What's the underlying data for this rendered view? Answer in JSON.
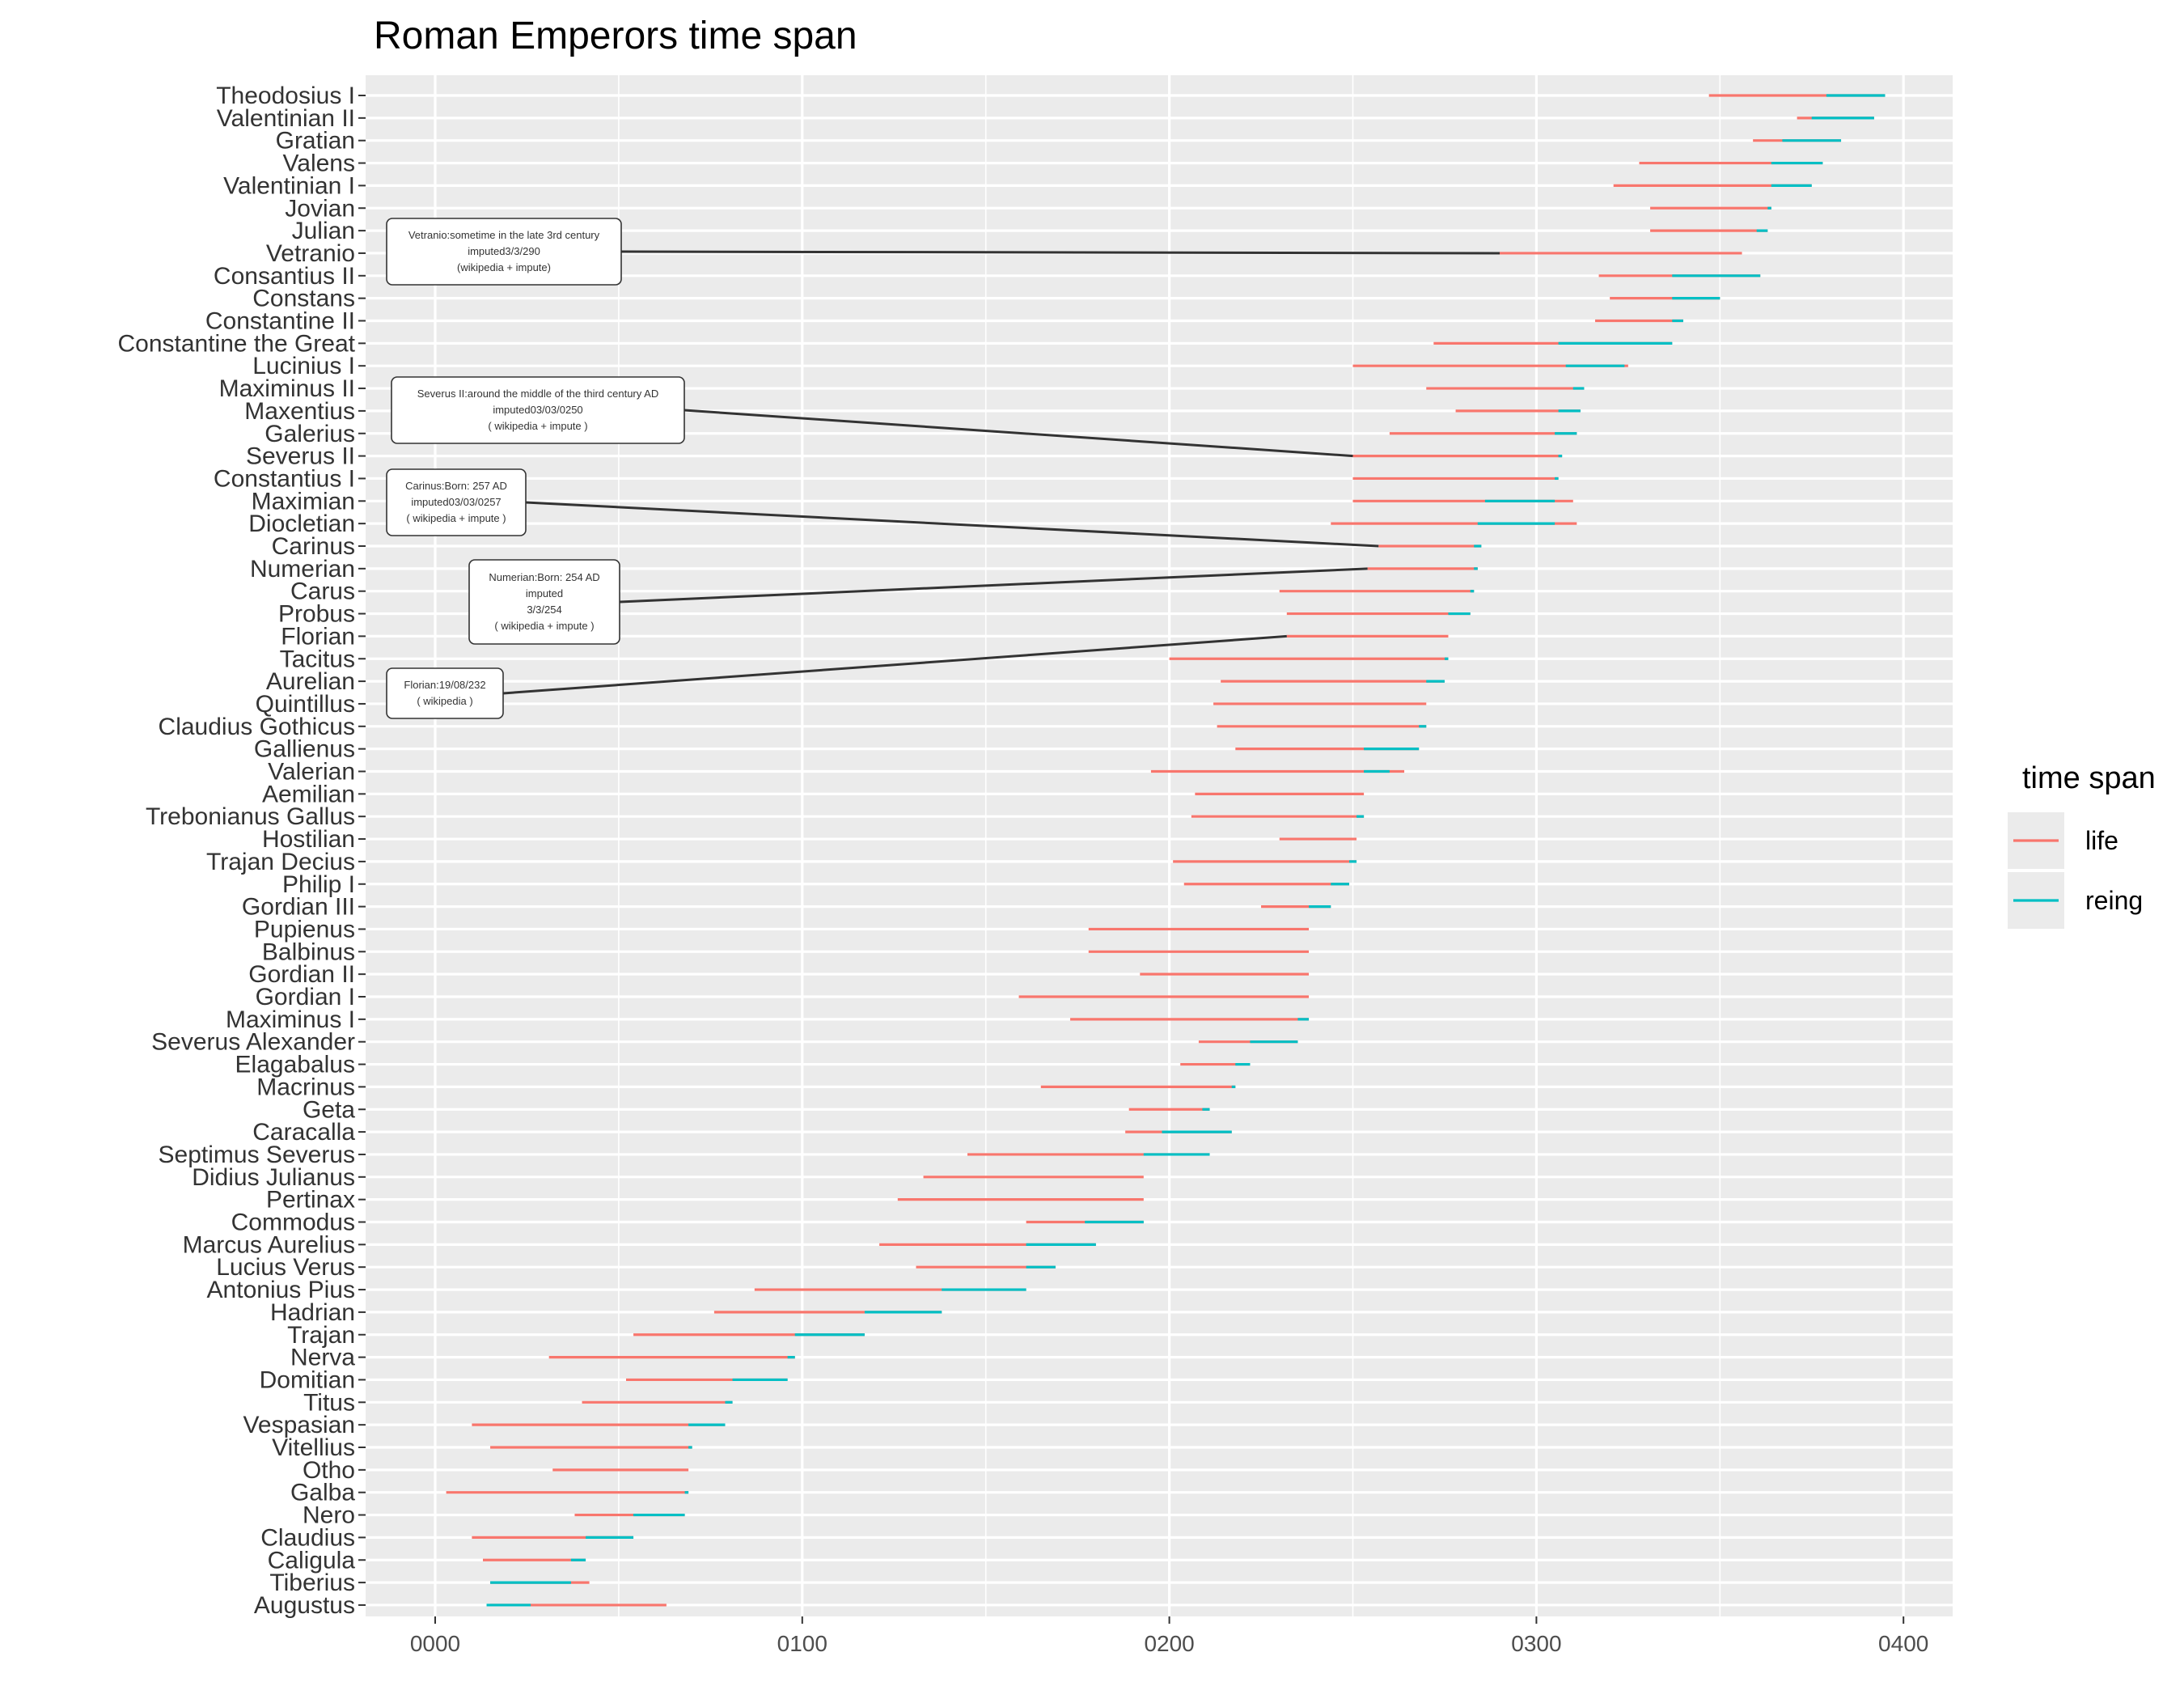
{
  "title": "Roman Emperors time span",
  "colors": {
    "life": "#F8766D",
    "reign": "#00BFC4",
    "panel": "#EBEBEB",
    "grid_major": "#FFFFFF",
    "annotation_line": "#333333"
  },
  "legend": {
    "title": "time span",
    "items": [
      {
        "key": "life",
        "label": "life"
      },
      {
        "key": "reign",
        "label": "reing"
      }
    ]
  },
  "chart_data": {
    "type": "segment",
    "title": "Roman Emperors time span",
    "xlabel": "",
    "ylabel": "",
    "xlim": [
      -15,
      415
    ],
    "x_ticks": [
      0,
      100,
      200,
      300,
      400
    ],
    "x_tick_labels": [
      "0000",
      "0100",
      "0200",
      "0300",
      "0400"
    ],
    "grid": true,
    "legend_position": "right",
    "emperors": [
      {
        "name": "Augustus",
        "life": [
          15,
          63
        ],
        "reign": [
          14,
          26
        ]
      },
      {
        "name": "Tiberius",
        "life": [
          15,
          42
        ],
        "reign": [
          15,
          37
        ]
      },
      {
        "name": "Caligula",
        "life": [
          13,
          41
        ],
        "reign": [
          37,
          41
        ]
      },
      {
        "name": "Claudius",
        "life": [
          10,
          54
        ],
        "reign": [
          41,
          54
        ]
      },
      {
        "name": "Nero",
        "life": [
          38,
          68
        ],
        "reign": [
          54,
          68
        ]
      },
      {
        "name": "Galba",
        "life": [
          3,
          69
        ],
        "reign": [
          68,
          69
        ]
      },
      {
        "name": "Otho",
        "life": [
          32,
          69
        ],
        "reign": [
          69,
          69
        ]
      },
      {
        "name": "Vitellius",
        "life": [
          15,
          70
        ],
        "reign": [
          69,
          70
        ]
      },
      {
        "name": "Vespasian",
        "life": [
          10,
          79
        ],
        "reign": [
          69,
          79
        ]
      },
      {
        "name": "Titus",
        "life": [
          40,
          81
        ],
        "reign": [
          79,
          81
        ]
      },
      {
        "name": "Domitian",
        "life": [
          52,
          96
        ],
        "reign": [
          81,
          96
        ]
      },
      {
        "name": "Nerva",
        "life": [
          31,
          98
        ],
        "reign": [
          96,
          98
        ]
      },
      {
        "name": "Trajan",
        "life": [
          54,
          117
        ],
        "reign": [
          98,
          117
        ]
      },
      {
        "name": "Hadrian",
        "life": [
          76,
          138
        ],
        "reign": [
          117,
          138
        ]
      },
      {
        "name": "Antonius Pius",
        "life": [
          87,
          161
        ],
        "reign": [
          138,
          161
        ]
      },
      {
        "name": "Lucius Verus",
        "life": [
          131,
          169
        ],
        "reign": [
          161,
          169
        ]
      },
      {
        "name": "Marcus Aurelius",
        "life": [
          121,
          180
        ],
        "reign": [
          161,
          180
        ]
      },
      {
        "name": "Commodus",
        "life": [
          161,
          193
        ],
        "reign": [
          177,
          193
        ]
      },
      {
        "name": "Pertinax",
        "life": [
          126,
          193
        ],
        "reign": [
          193,
          193
        ]
      },
      {
        "name": "Didius Julianus",
        "life": [
          133,
          193
        ],
        "reign": [
          193,
          193
        ]
      },
      {
        "name": "Septimus Severus",
        "life": [
          145,
          211
        ],
        "reign": [
          193,
          211
        ]
      },
      {
        "name": "Caracalla",
        "life": [
          188,
          217
        ],
        "reign": [
          198,
          217
        ]
      },
      {
        "name": "Geta",
        "life": [
          189,
          211
        ],
        "reign": [
          209,
          211
        ]
      },
      {
        "name": "Macrinus",
        "life": [
          165,
          218
        ],
        "reign": [
          217,
          218
        ]
      },
      {
        "name": "Elagabalus",
        "life": [
          203,
          222
        ],
        "reign": [
          218,
          222
        ]
      },
      {
        "name": "Severus Alexander",
        "life": [
          208,
          235
        ],
        "reign": [
          222,
          235
        ]
      },
      {
        "name": "Maximinus I",
        "life": [
          173,
          238
        ],
        "reign": [
          235,
          238
        ]
      },
      {
        "name": "Gordian I",
        "life": [
          159,
          238
        ],
        "reign": [
          238,
          238
        ]
      },
      {
        "name": "Gordian II",
        "life": [
          192,
          238
        ],
        "reign": [
          238,
          238
        ]
      },
      {
        "name": "Balbinus",
        "life": [
          178,
          238
        ],
        "reign": [
          238,
          238
        ]
      },
      {
        "name": "Pupienus",
        "life": [
          178,
          238
        ],
        "reign": [
          238,
          238
        ]
      },
      {
        "name": "Gordian III",
        "life": [
          225,
          244
        ],
        "reign": [
          238,
          244
        ]
      },
      {
        "name": "Philip I",
        "life": [
          204,
          249
        ],
        "reign": [
          244,
          249
        ]
      },
      {
        "name": "Trajan Decius",
        "life": [
          201,
          251
        ],
        "reign": [
          249,
          251
        ]
      },
      {
        "name": "Hostilian",
        "life": [
          230,
          251
        ],
        "reign": [
          251,
          251
        ]
      },
      {
        "name": "Trebonianus Gallus",
        "life": [
          206,
          253
        ],
        "reign": [
          251,
          253
        ]
      },
      {
        "name": "Aemilian",
        "life": [
          207,
          253
        ],
        "reign": [
          253,
          253
        ]
      },
      {
        "name": "Valerian",
        "life": [
          195,
          264
        ],
        "reign": [
          253,
          260
        ]
      },
      {
        "name": "Gallienus",
        "life": [
          218,
          268
        ],
        "reign": [
          253,
          268
        ]
      },
      {
        "name": "Claudius Gothicus",
        "life": [
          213,
          270
        ],
        "reign": [
          268,
          270
        ]
      },
      {
        "name": "Quintillus",
        "life": [
          212,
          270
        ],
        "reign": [
          270,
          270
        ]
      },
      {
        "name": "Aurelian",
        "life": [
          214,
          275
        ],
        "reign": [
          270,
          275
        ]
      },
      {
        "name": "Tacitus",
        "life": [
          200,
          276
        ],
        "reign": [
          275,
          276
        ]
      },
      {
        "name": "Florian",
        "life": [
          232,
          276
        ],
        "reign": [
          276,
          276
        ]
      },
      {
        "name": "Probus",
        "life": [
          232,
          282
        ],
        "reign": [
          276,
          282
        ]
      },
      {
        "name": "Carus",
        "life": [
          230,
          283
        ],
        "reign": [
          282,
          283
        ]
      },
      {
        "name": "Numerian",
        "life": [
          254,
          284
        ],
        "reign": [
          283,
          284
        ]
      },
      {
        "name": "Carinus",
        "life": [
          257,
          285
        ],
        "reign": [
          283,
          285
        ]
      },
      {
        "name": "Diocletian",
        "life": [
          244,
          311
        ],
        "reign": [
          284,
          305
        ]
      },
      {
        "name": "Maximian",
        "life": [
          250,
          310
        ],
        "reign": [
          286,
          305
        ]
      },
      {
        "name": "Constantius I",
        "life": [
          250,
          306
        ],
        "reign": [
          305,
          306
        ]
      },
      {
        "name": "Severus II",
        "life": [
          250,
          307
        ],
        "reign": [
          306,
          307
        ]
      },
      {
        "name": "Galerius",
        "life": [
          260,
          311
        ],
        "reign": [
          305,
          311
        ]
      },
      {
        "name": "Maxentius",
        "life": [
          278,
          312
        ],
        "reign": [
          306,
          312
        ]
      },
      {
        "name": "Maximinus II",
        "life": [
          270,
          313
        ],
        "reign": [
          310,
          313
        ]
      },
      {
        "name": "Lucinius I",
        "life": [
          250,
          325
        ],
        "reign": [
          308,
          324
        ]
      },
      {
        "name": "Constantine the Great",
        "life": [
          272,
          337
        ],
        "reign": [
          306,
          337
        ]
      },
      {
        "name": "Constantine II",
        "life": [
          316,
          340
        ],
        "reign": [
          337,
          340
        ]
      },
      {
        "name": "Constans",
        "life": [
          320,
          350
        ],
        "reign": [
          337,
          350
        ]
      },
      {
        "name": "Consantius II",
        "life": [
          317,
          361
        ],
        "reign": [
          337,
          361
        ]
      },
      {
        "name": "Vetranio",
        "life": [
          290,
          356
        ],
        "reign": [
          350,
          350
        ]
      },
      {
        "name": "Julian",
        "life": [
          331,
          363
        ],
        "reign": [
          360,
          363
        ]
      },
      {
        "name": "Jovian",
        "life": [
          331,
          364
        ],
        "reign": [
          363,
          364
        ]
      },
      {
        "name": "Valentinian I",
        "life": [
          321,
          375
        ],
        "reign": [
          364,
          375
        ]
      },
      {
        "name": "Valens",
        "life": [
          328,
          378
        ],
        "reign": [
          364,
          378
        ]
      },
      {
        "name": "Gratian",
        "life": [
          359,
          383
        ],
        "reign": [
          367,
          383
        ]
      },
      {
        "name": "Valentinian II",
        "life": [
          371,
          392
        ],
        "reign": [
          375,
          392
        ]
      },
      {
        "name": "Theodosius I",
        "life": [
          347,
          395
        ],
        "reign": [
          379,
          395
        ]
      }
    ],
    "annotations": [
      {
        "target": "Vetranio",
        "target_x": 290,
        "lines": [
          "Vetranio:sometime in the late 3rd century",
          "imputed3/3/290",
          "(wikipedia + impute)"
        ]
      },
      {
        "target": "Severus II",
        "target_x": 250,
        "lines": [
          "Severus II:around the middle of the third century AD",
          "imputed03/03/0250",
          "( wikipedia + impute )"
        ]
      },
      {
        "target": "Carinus",
        "target_x": 257,
        "lines": [
          "Carinus:Born: 257 AD",
          "imputed03/03/0257",
          "( wikipedia + impute )"
        ]
      },
      {
        "target": "Numerian",
        "target_x": 254,
        "lines": [
          "Numerian:Born: 254 AD",
          "imputed",
          "3/3/254",
          "( wikipedia + impute )"
        ]
      },
      {
        "target": "Florian",
        "target_x": 232,
        "lines": [
          "Florian:19/08/232",
          "( wikipedia )"
        ]
      }
    ]
  }
}
